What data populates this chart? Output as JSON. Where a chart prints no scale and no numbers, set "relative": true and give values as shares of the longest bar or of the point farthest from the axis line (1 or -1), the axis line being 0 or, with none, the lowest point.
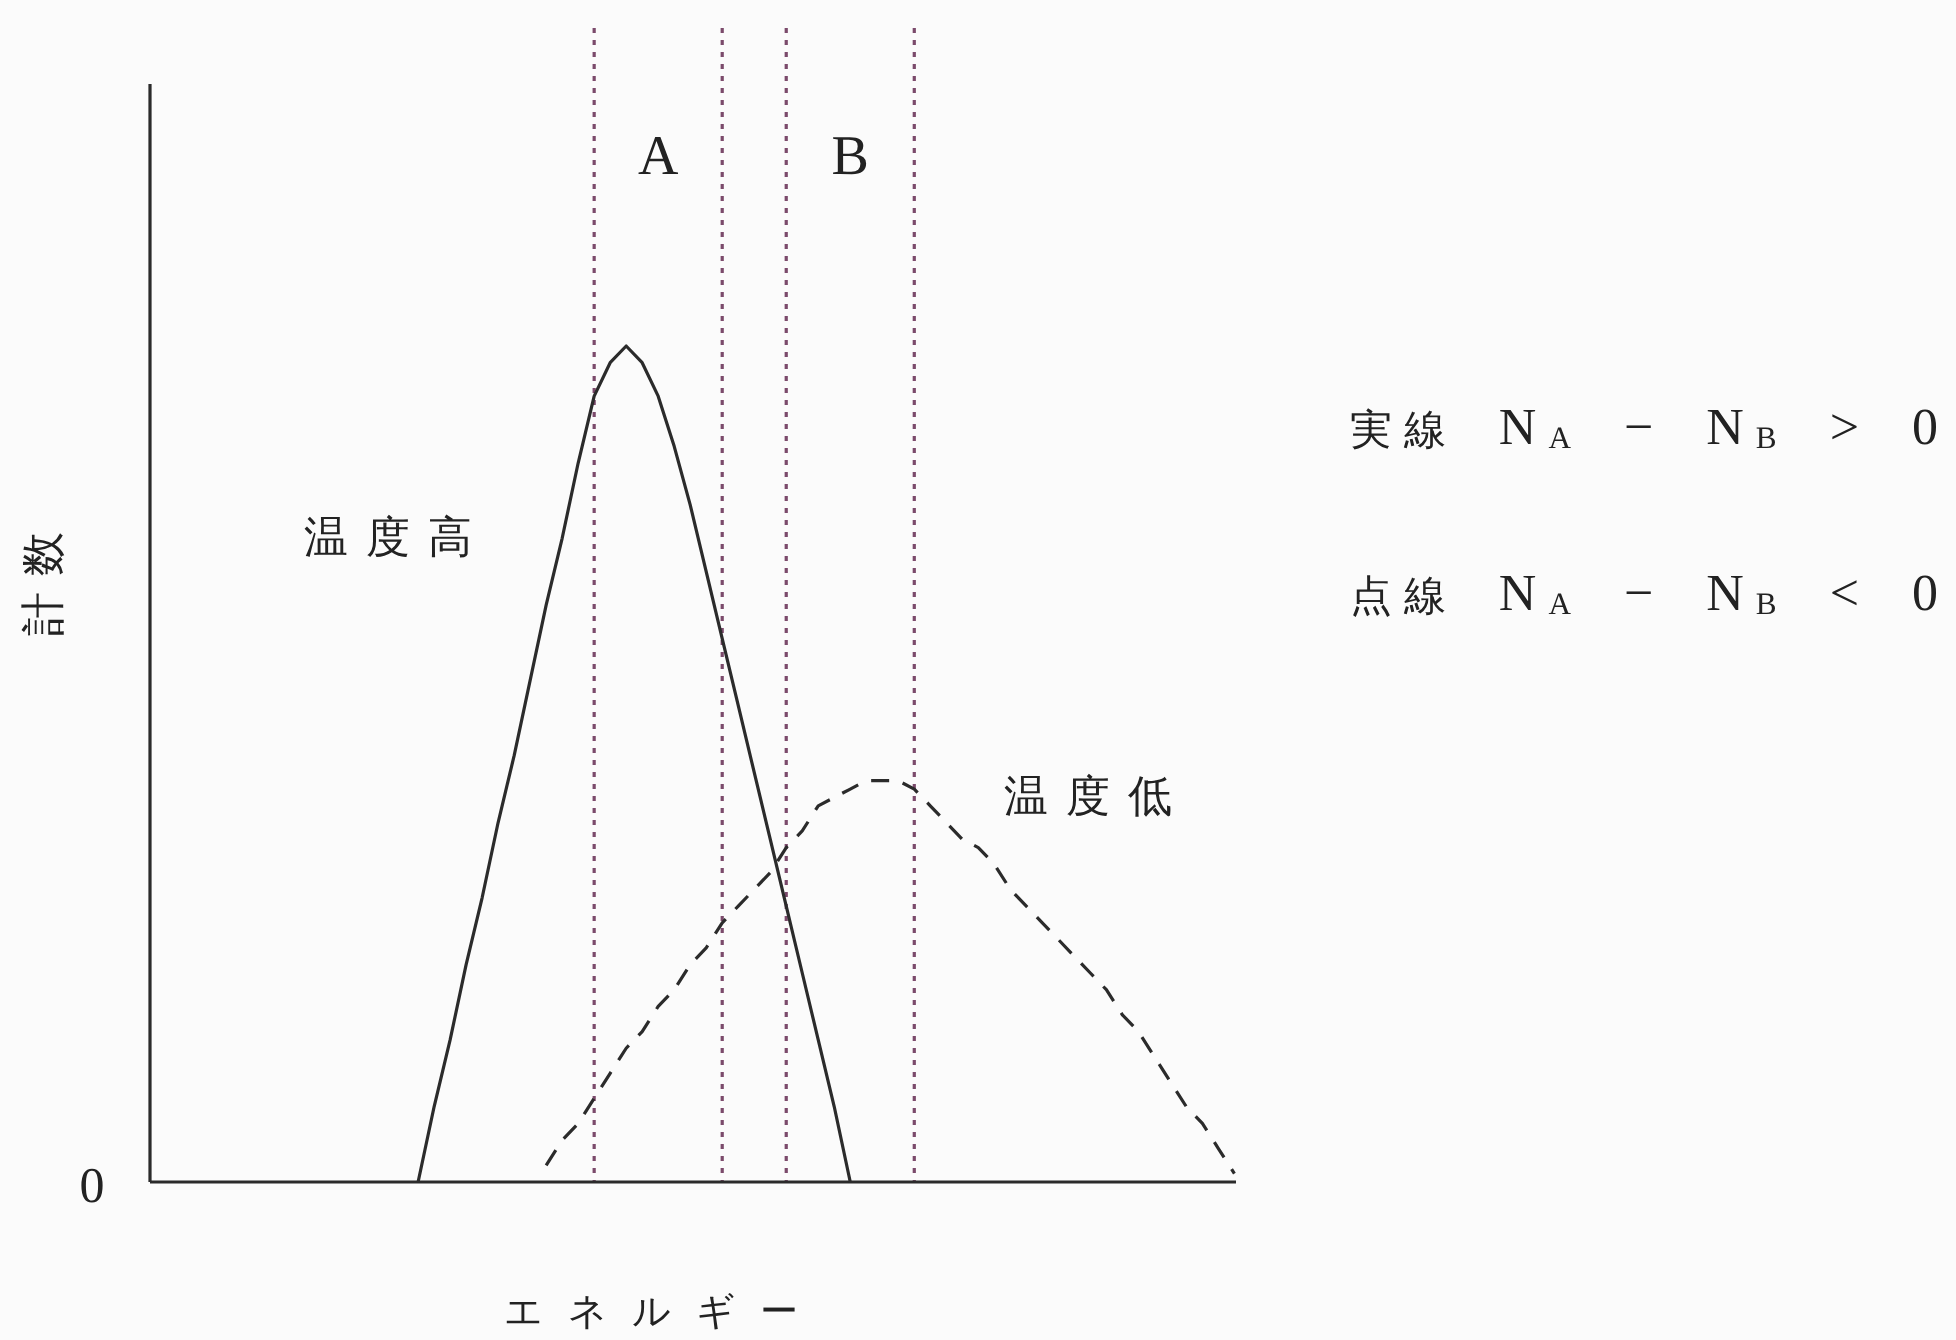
{
  "chart_data": {
    "type": "line",
    "relative": true,
    "grid": "x",
    "categories": [
      null,
      null,
      null,
      null,
      null,
      null,
      null,
      null,
      null,
      null,
      null,
      null,
      null,
      null,
      null,
      null,
      null,
      null,
      null,
      null,
      null,
      null,
      null,
      null,
      null,
      null,
      null,
      null,
      null,
      null,
      null,
      null,
      null,
      null,
      null,
      null,
      null,
      null,
      null,
      null,
      null,
      null,
      null,
      null,
      null,
      null,
      null,
      null,
      null,
      null,
      null,
      null,
      null,
      null,
      null,
      null,
      null,
      null,
      null,
      null,
      null,
      null,
      null,
      null,
      null,
      null,
      null,
      null,
      null
    ],
    "series": [
      {
        "name": "温度高",
        "color": "#2b2b2b",
        "line_style": "solid",
        "values": [
          null,
          null,
          null,
          null,
          null,
          null,
          null,
          null,
          null,
          null,
          null,
          null,
          null,
          null,
          null,
          null,
          null,
          0,
          0.09,
          0.17,
          0.26,
          0.34,
          0.43,
          0.51,
          0.6,
          0.69,
          0.77,
          0.86,
          0.94,
          0.98,
          1,
          0.98,
          0.94,
          0.88,
          0.81,
          0.73,
          0.65,
          0.57,
          0.49,
          0.41,
          0.33,
          0.25,
          0.17,
          0.09,
          0,
          null,
          null,
          null,
          null,
          null,
          null,
          null,
          null,
          null,
          null,
          null,
          null,
          null,
          null,
          null,
          null,
          null,
          null,
          null,
          null,
          null,
          null,
          null,
          null
        ]
      },
      {
        "name": "温度低",
        "color": "#2b2b2b",
        "line_style": "dashed",
        "values": [
          null,
          null,
          null,
          null,
          null,
          null,
          null,
          null,
          null,
          null,
          null,
          null,
          null,
          null,
          null,
          null,
          null,
          null,
          null,
          null,
          null,
          null,
          null,
          null,
          null,
          0.02,
          0.05,
          0.07,
          0.1,
          0.13,
          0.16,
          0.18,
          0.21,
          0.23,
          0.26,
          0.28,
          0.31,
          0.33,
          0.35,
          0.37,
          0.4,
          0.42,
          0.45,
          0.46,
          0.47,
          0.48,
          0.48,
          0.48,
          0.47,
          0.45,
          0.43,
          0.41,
          0.4,
          0.38,
          0.35,
          0.33,
          0.31,
          0.29,
          0.27,
          0.25,
          0.23,
          0.2,
          0.18,
          0.15,
          0.12,
          0.09,
          0.07,
          0.04,
          0.01
        ]
      }
    ],
    "xlabel": "エネルギー",
    "ylabel": "計数",
    "annotations": [
      "0",
      "A",
      "B",
      "実線 N$_{A}$ − N$_{B}$ > 0",
      "点線 N$_{A}$ − N$_{B}$ < 0"
    ]
  }
}
